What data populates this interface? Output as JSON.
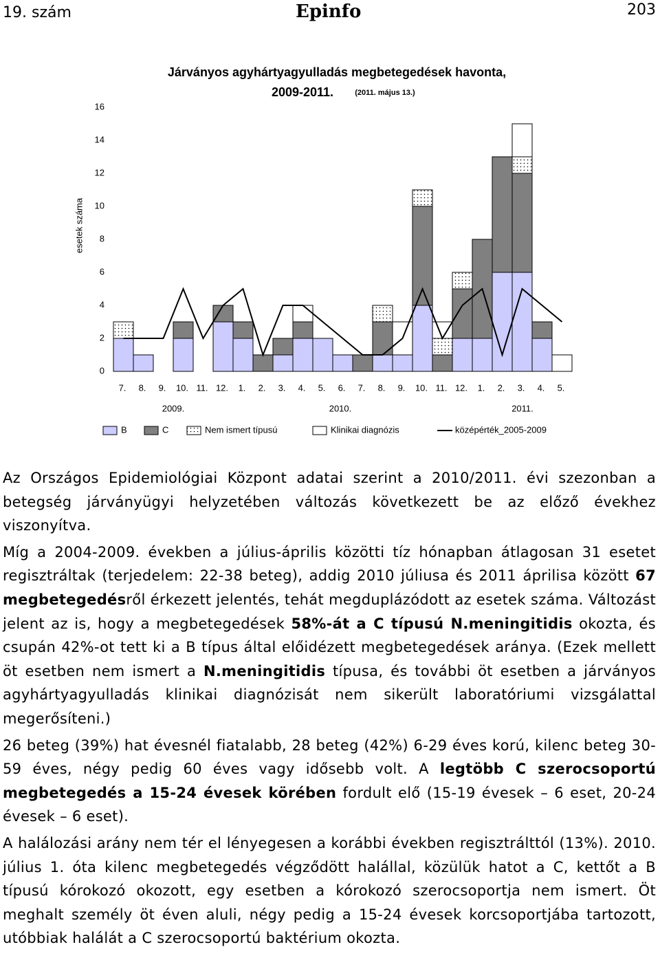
{
  "header": {
    "left": "19. szám",
    "center": "Epinfo",
    "right": "203"
  },
  "chart_data": {
    "type": "bar",
    "stacked": true,
    "title": "Járványos agyhártyagyulladás megbetegedések havonta,",
    "title_line2": "2009-2011.",
    "title_note": "(2011. május 13.)",
    "ylabel": "esetek száma",
    "categories": [
      "7.",
      "8.",
      "9.",
      "10.",
      "11.",
      "12.",
      "1.",
      "2.",
      "3.",
      "4.",
      "5.",
      "6.",
      "7.",
      "8.",
      "9.",
      "10.",
      "11.",
      "12.",
      "1.",
      "2.",
      "3.",
      "4.",
      "5."
    ],
    "year_labels": [
      "2009.",
      "2010.",
      "2011."
    ],
    "ylim": [
      0,
      16
    ],
    "yticks": [
      0,
      2,
      4,
      6,
      8,
      10,
      12,
      14,
      16
    ],
    "series": [
      {
        "name": "B",
        "color": "#ccccff",
        "values": [
          2,
          1,
          0,
          2,
          0,
          3,
          2,
          0,
          1,
          2,
          2,
          1,
          0,
          1,
          1,
          4,
          0,
          2,
          2,
          6,
          6,
          2,
          0
        ]
      },
      {
        "name": "C",
        "color": "#808080",
        "values": [
          0,
          0,
          0,
          1,
          0,
          1,
          1,
          1,
          1,
          1,
          0,
          0,
          1,
          2,
          0,
          6,
          1,
          3,
          6,
          7,
          6,
          1,
          0
        ]
      },
      {
        "name": "Nem ismert típusú",
        "color": "#ffffff",
        "pattern": "dots",
        "values": [
          1,
          0,
          0,
          0,
          0,
          0,
          0,
          0,
          0,
          0,
          0,
          0,
          0,
          1,
          0,
          1,
          1,
          1,
          0,
          0,
          1,
          0,
          0
        ]
      },
      {
        "name": "Klinikai diagnózis",
        "color": "#ffffff",
        "values": [
          0,
          0,
          0,
          0,
          0,
          0,
          0,
          0,
          0,
          1,
          0,
          0,
          0,
          0,
          2,
          0,
          1,
          0,
          0,
          0,
          2,
          0,
          1
        ]
      },
      {
        "name": "középérték_2005-2009",
        "color": "#000000",
        "kind": "line",
        "values": [
          2,
          2,
          2,
          5,
          2,
          4,
          5,
          1,
          4,
          4,
          3,
          2,
          1,
          1,
          2,
          5,
          2,
          4,
          5,
          1,
          5,
          4,
          3
        ]
      }
    ]
  },
  "paragraphs": [
    [
      "Az Országos Epidemiológiai Központ adatai szerint a 2010/2011. évi szezonban a betegség járványügyi helyzetében változás következett be az előző évekhez viszonyítva."
    ],
    [
      "Míg a 2004-2009. években a július-április közötti tíz hónapban átlagosan 31 esetet regisztráltak (terjedelem: 22-38 beteg), addig 2010 júliusa és 2011 áprilisa között ",
      {
        "bold": "67 megbetegedés"
      },
      "ről érkezett jelentés, tehát megduplázódott az esetek száma. Változást jelent az is, hogy a megbetegedések ",
      {
        "bold": "58%-át a C típusú N.meningitidis"
      },
      " okozta, és csupán 42%-ot tett ki a B típus által előidézett megbetegedések aránya. (Ezek mellett öt esetben nem ismert a ",
      {
        "bold": "N.meningitidis"
      },
      " típusa, és további öt esetben a járványos agyhártyagyulladás klinikai diagnózisát nem sikerült laboratóriumi vizsgálattal megerősíteni.)"
    ],
    [
      "26 beteg (39%) hat évesnél fiatalabb, 28 beteg (42%) 6-29 éves korú, kilenc beteg 30-59 éves, négy pedig 60 éves vagy idősebb volt. A ",
      {
        "bold": "legtöbb C szerocsoportú megbetegedés a 15-24 évesek körében"
      },
      " fordult elő (15-19 évesek – 6 eset, 20-24 évesek – 6 eset)."
    ],
    [
      "A halálozási arány nem tér el lényegesen a korábbi években regisztrálttól (13%). 2010. július 1. óta kilenc megbetegedés végződött halállal, közülük hatot a C, kettőt a B típusú kórokozó okozott, egy esetben a kórokozó szerocsoportja nem ismert. Öt meghalt személy öt éven aluli, négy pedig a 15-24 évesek korcsoportjába tartozott, utóbbiak halálát a C szerocsoportú baktérium okozta."
    ]
  ]
}
